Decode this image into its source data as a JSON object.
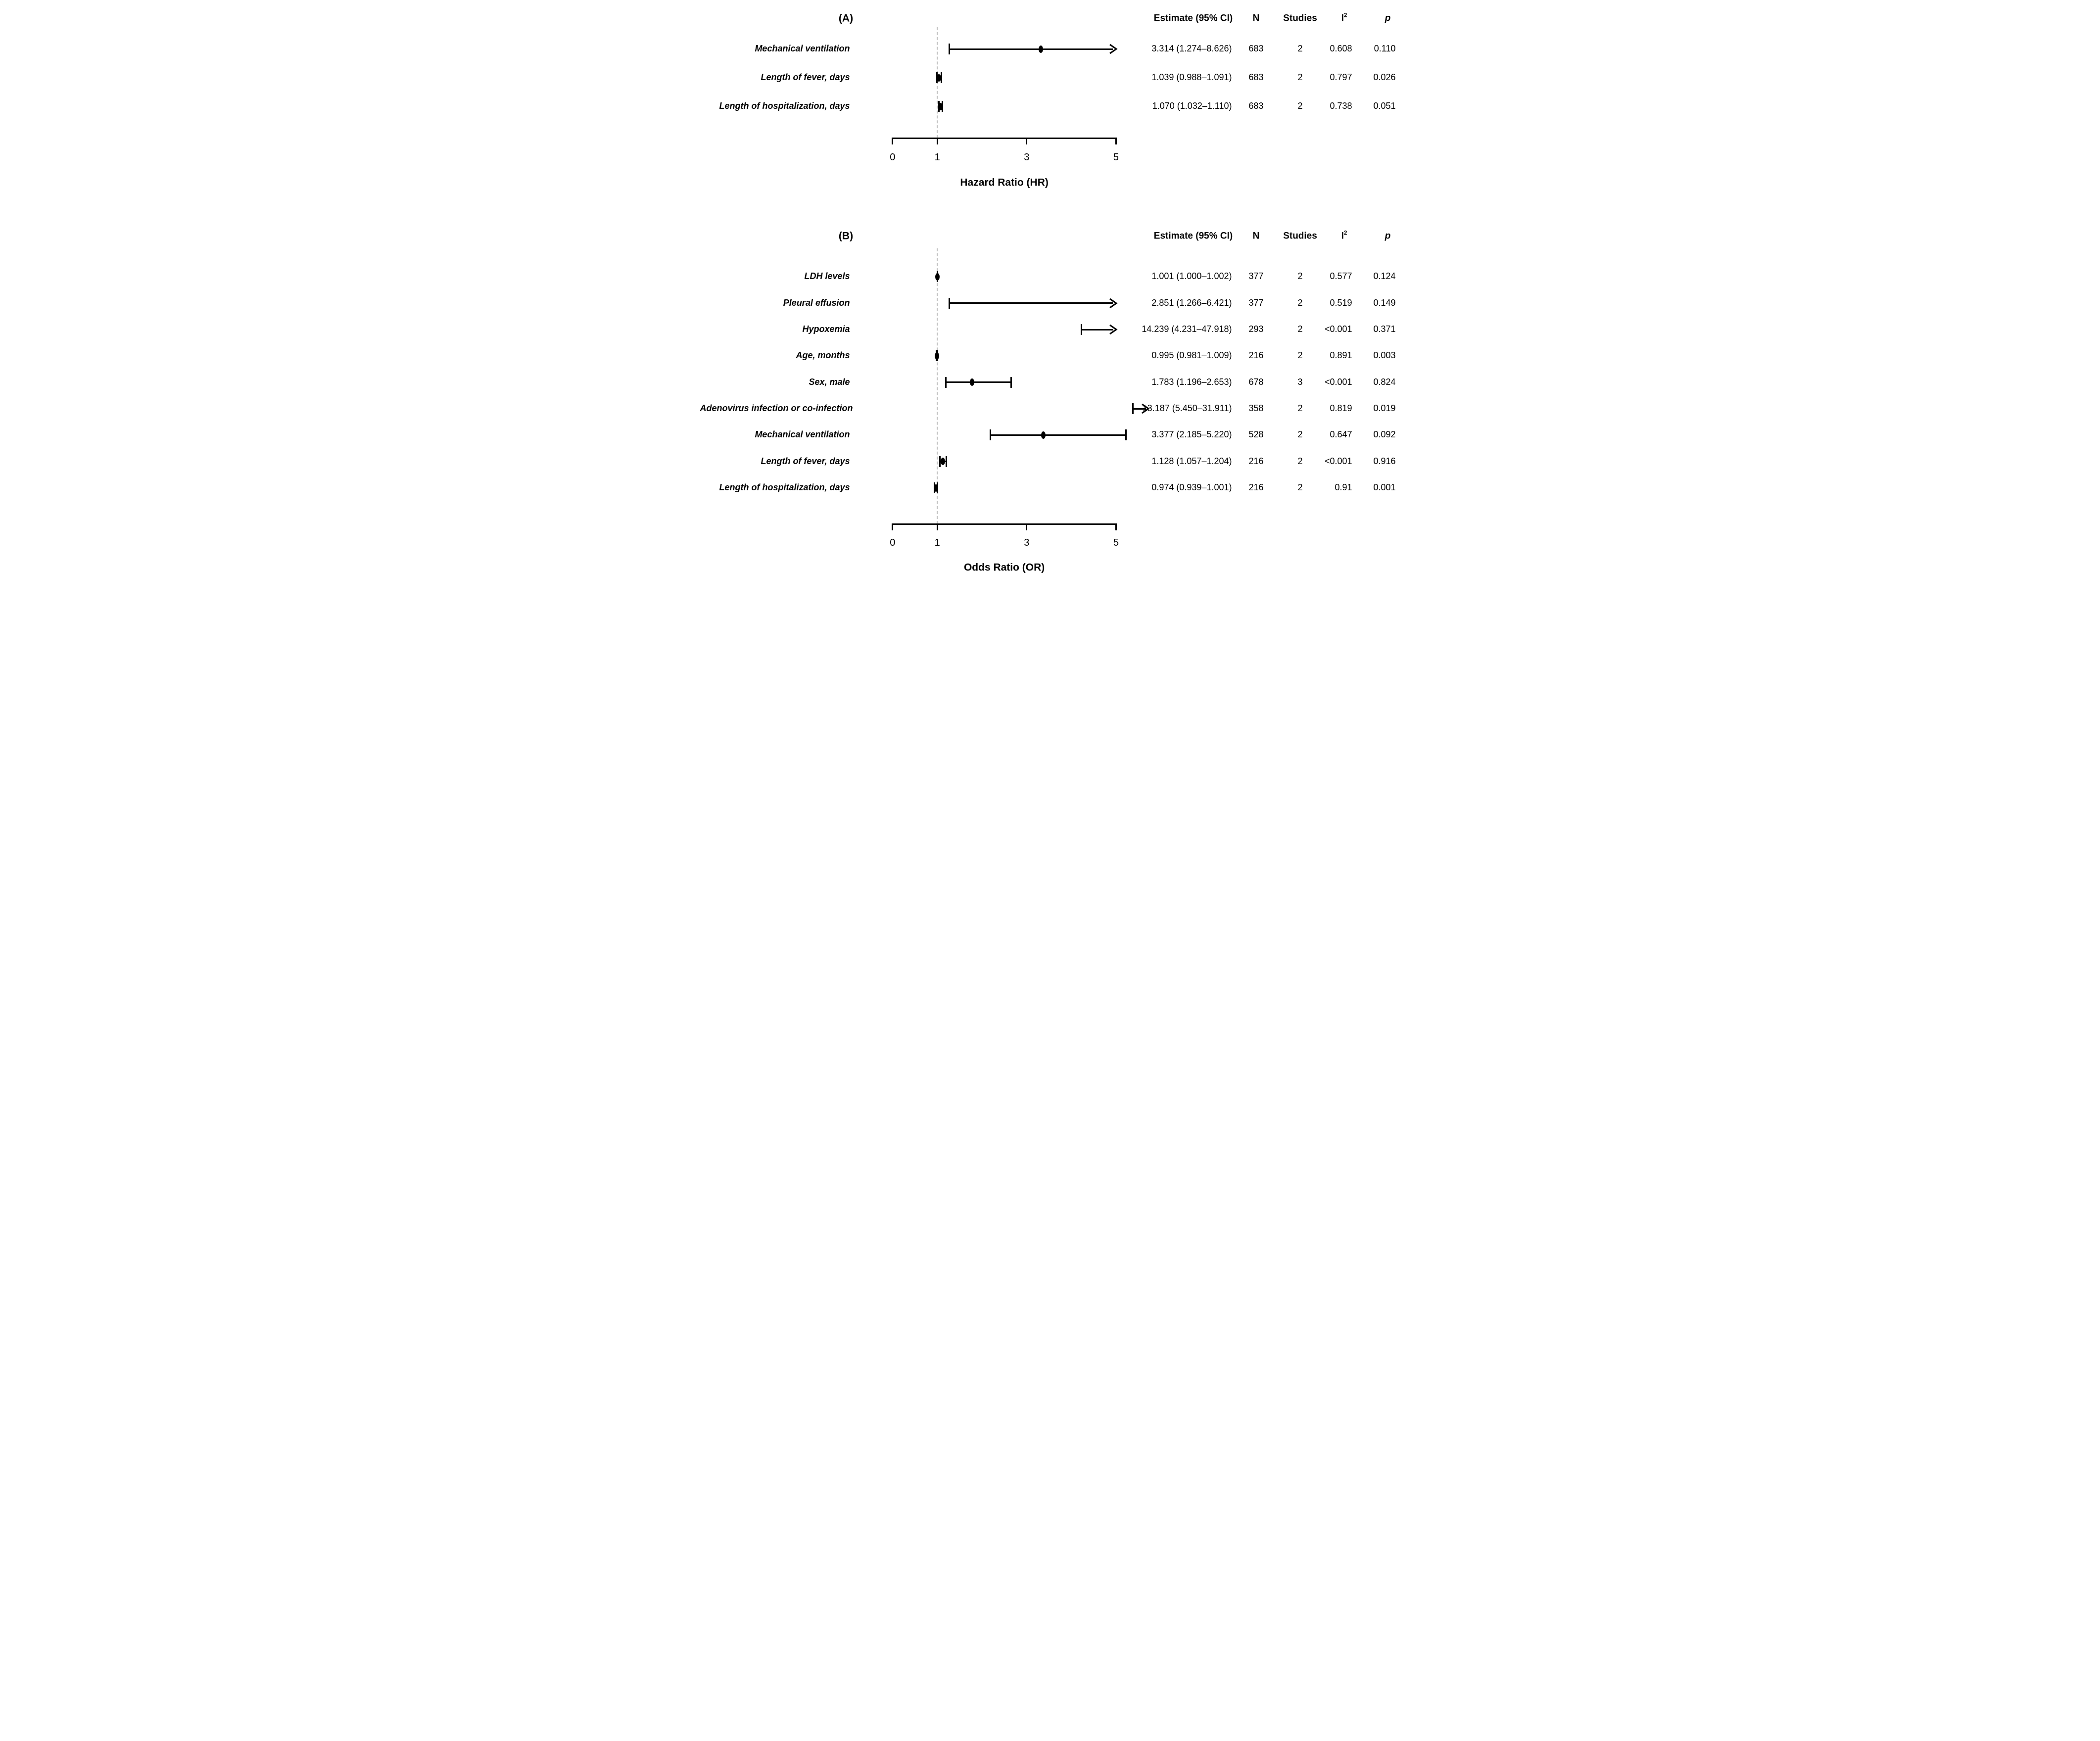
{
  "figure": {
    "columns": {
      "estimate": "Estimate (95% CI)",
      "n": "N",
      "studies": "Studies",
      "i2_base": "I",
      "i2_sup": "2",
      "p": "p"
    }
  },
  "chart_data": [
    {
      "type": "scatter",
      "subtype": "forest",
      "panel": "(A)",
      "xlabel": "Hazard Ratio (HR)",
      "xlim": [
        0,
        5
      ],
      "xticks": [
        0,
        1,
        3,
        5
      ],
      "refline_x": 1,
      "grid": false,
      "rows": [
        {
          "label": "Mechanical ventilation",
          "est": 3.314,
          "lo": 1.274,
          "hi": 8.626,
          "est_text": "3.314 (1.274–8.626)",
          "n": 683,
          "studies": 2,
          "i2": "0.608",
          "p": "0.110",
          "show_point": true
        },
        {
          "label": "Length of fever, days",
          "est": 1.039,
          "lo": 0.988,
          "hi": 1.091,
          "est_text": "1.039 (0.988–1.091)",
          "n": 683,
          "studies": 2,
          "i2": "0.797",
          "p": "0.026",
          "show_point": true
        },
        {
          "label": "Length of hospitalization, days",
          "est": 1.07,
          "lo": 1.032,
          "hi": 1.11,
          "est_text": "1.070 (1.032–1.110)",
          "n": 683,
          "studies": 2,
          "i2": "0.738",
          "p": "0.051",
          "show_point": true
        }
      ]
    },
    {
      "type": "scatter",
      "subtype": "forest",
      "panel": "(B)",
      "xlabel": "Odds Ratio (OR)",
      "xlim": [
        0,
        5
      ],
      "xticks": [
        0,
        1,
        3,
        5
      ],
      "refline_x": 1,
      "grid": false,
      "rows": [
        {
          "label": "LDH levels",
          "est": 1.001,
          "lo": 1.0,
          "hi": 1.002,
          "est_text": "1.001 (1.000–1.002)",
          "n": 377,
          "studies": 2,
          "i2": "0.577",
          "p": "0.124",
          "show_point": true
        },
        {
          "label": "Pleural effusion",
          "est": 2.851,
          "lo": 1.266,
          "hi": 6.421,
          "est_text": "2.851 (1.266–6.421)",
          "n": 377,
          "studies": 2,
          "i2": "0.519",
          "p": "0.149",
          "show_point": false
        },
        {
          "label": "Hypoxemia",
          "est": 14.239,
          "lo": 4.231,
          "hi": 47.918,
          "est_text": "14.239 (4.231–47.918)",
          "n": 293,
          "studies": 2,
          "i2": "<0.001",
          "p": "0.371",
          "show_point": true
        },
        {
          "label": "Age, months",
          "est": 0.995,
          "lo": 0.981,
          "hi": 1.009,
          "est_text": "0.995 (0.981–1.009)",
          "n": 216,
          "studies": 2,
          "i2": "0.891",
          "p": "0.003",
          "show_point": true
        },
        {
          "label": "Sex, male",
          "est": 1.783,
          "lo": 1.196,
          "hi": 2.653,
          "est_text": "1.783 (1.196–2.653)",
          "n": 678,
          "studies": 3,
          "i2": "<0.001",
          "p": "0.824",
          "show_point": true
        },
        {
          "label": "Adenovirus infection or co-infection",
          "est": 13.187,
          "lo": 5.45,
          "hi": 31.911,
          "est_text": "13.187 (5.450–31.911)",
          "n": 358,
          "studies": 2,
          "i2": "0.819",
          "p": "0.019",
          "show_point": true
        },
        {
          "label": "Mechanical ventilation",
          "est": 3.377,
          "lo": 2.185,
          "hi": 5.22,
          "est_text": "3.377 (2.185–5.220)",
          "n": 528,
          "studies": 2,
          "i2": "0.647",
          "p": "0.092",
          "show_point": true
        },
        {
          "label": "Length of fever, days",
          "est": 1.128,
          "lo": 1.057,
          "hi": 1.204,
          "est_text": "1.128 (1.057–1.204)",
          "n": 216,
          "studies": 2,
          "i2": "<0.001",
          "p": "0.916",
          "show_point": true
        },
        {
          "label": "Length of hospitalization, days",
          "est": 0.974,
          "lo": 0.939,
          "hi": 1.001,
          "est_text": "0.974 (0.939–1.001)",
          "n": 216,
          "studies": 2,
          "i2": "0.91",
          "p": "0.001",
          "show_point": true
        }
      ]
    }
  ]
}
